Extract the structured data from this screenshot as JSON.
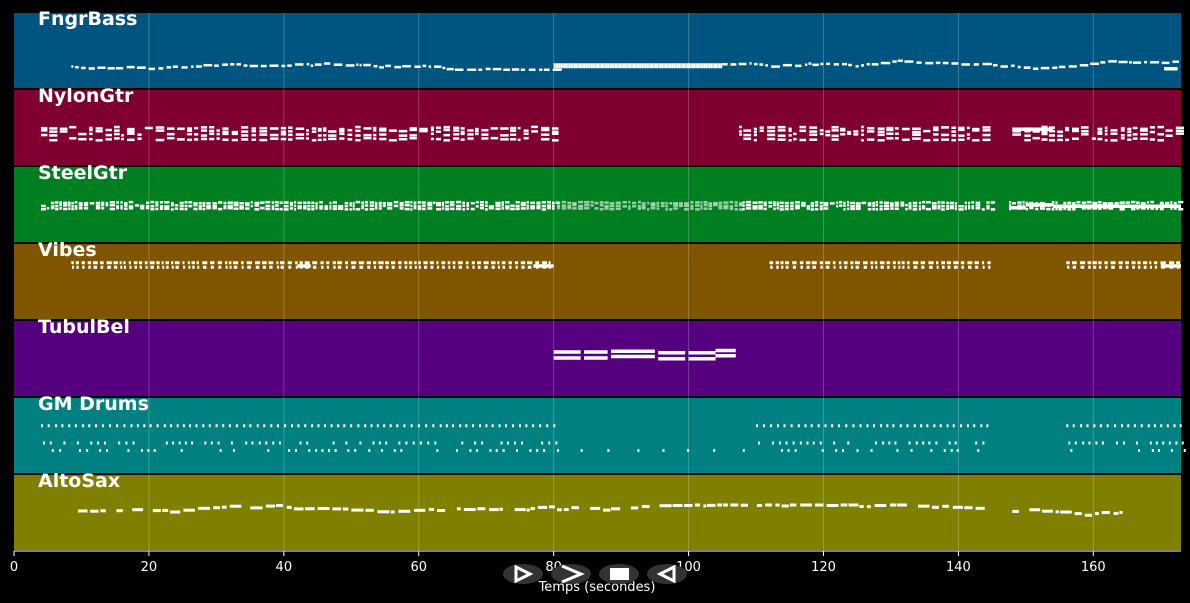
{
  "x_axis": {
    "label": "Temps (secondes)",
    "min": 0,
    "max": 173,
    "ticks": [
      0,
      20,
      40,
      60,
      80,
      100,
      120,
      140,
      160
    ]
  },
  "tracks": [
    {
      "name": "FngrBass",
      "color": "#005580",
      "segments": [
        [
          8.5,
          80,
          "melody"
        ],
        [
          80,
          89,
          "dense"
        ],
        [
          89,
          105,
          "dense"
        ],
        [
          105,
          172,
          "melody"
        ]
      ],
      "blocks": [
        [
          170.5,
          172.5,
          0.72
        ]
      ]
    },
    {
      "name": "NylonGtr",
      "color": "#7f0030",
      "segments": [
        [
          4,
          80.5,
          "chords"
        ],
        [
          107.5,
          145,
          "chords"
        ],
        [
          148,
          173,
          "chords"
        ]
      ],
      "blocks": [
        [
          148,
          154,
          0.5
        ]
      ]
    },
    {
      "name": "SteelGtr",
      "color": "#007f20",
      "segments": [
        [
          4,
          80.5,
          "strum"
        ],
        [
          80.5,
          108,
          "strum-faint"
        ],
        [
          108,
          145,
          "strum"
        ],
        [
          147.5,
          173,
          "strum"
        ]
      ],
      "blocks": [
        [
          147.5,
          150,
          0.52
        ],
        [
          150,
          154,
          0.48
        ],
        [
          154,
          173,
          0.5
        ]
      ]
    },
    {
      "name": "Vibes",
      "color": "#7f5500",
      "segments": [
        [
          8.5,
          80,
          "vibes"
        ],
        [
          112,
          145,
          "vibes"
        ],
        [
          156,
          173,
          "vibes"
        ]
      ],
      "blocks": [
        [
          42,
          44,
          0.27
        ],
        [
          77,
          80,
          0.27
        ],
        [
          170,
          173,
          0.27
        ]
      ]
    },
    {
      "name": "TubulBel",
      "color": "#55007f",
      "segments": [],
      "blocks": [
        [
          80,
          84,
          0.39
        ],
        [
          80,
          84,
          0.47
        ],
        [
          84.5,
          88,
          0.39
        ],
        [
          84.5,
          88,
          0.47
        ],
        [
          88.5,
          93,
          0.38
        ],
        [
          88.5,
          93,
          0.45
        ],
        [
          93,
          95,
          0.38
        ],
        [
          93,
          95,
          0.45
        ],
        [
          95.5,
          99.5,
          0.4
        ],
        [
          95.5,
          99.5,
          0.48
        ],
        [
          100,
          104,
          0.4
        ],
        [
          100,
          104,
          0.48
        ],
        [
          104,
          107,
          0.37
        ],
        [
          104,
          107,
          0.44
        ]
      ]
    },
    {
      "name": "GM Drums",
      "color": "#008080",
      "segments": [
        [
          4,
          80.5,
          "drums"
        ],
        [
          80.5,
          110,
          "drums-sparse"
        ],
        [
          110,
          145,
          "drums"
        ],
        [
          156,
          173,
          "drums"
        ]
      ],
      "blocks": []
    },
    {
      "name": "AltoSax",
      "color": "#808000",
      "segments": [
        [
          9.5,
          80,
          "sax"
        ],
        [
          80.5,
          144,
          "sax"
        ],
        [
          148,
          164,
          "sax"
        ]
      ],
      "blocks": []
    }
  ],
  "controls": [
    {
      "name": "rewind-button",
      "icon": "rewind-icon"
    },
    {
      "name": "play-button",
      "icon": "play-icon"
    },
    {
      "name": "stop-button",
      "icon": "stop-icon"
    },
    {
      "name": "forward-button",
      "icon": "forward-icon"
    }
  ]
}
